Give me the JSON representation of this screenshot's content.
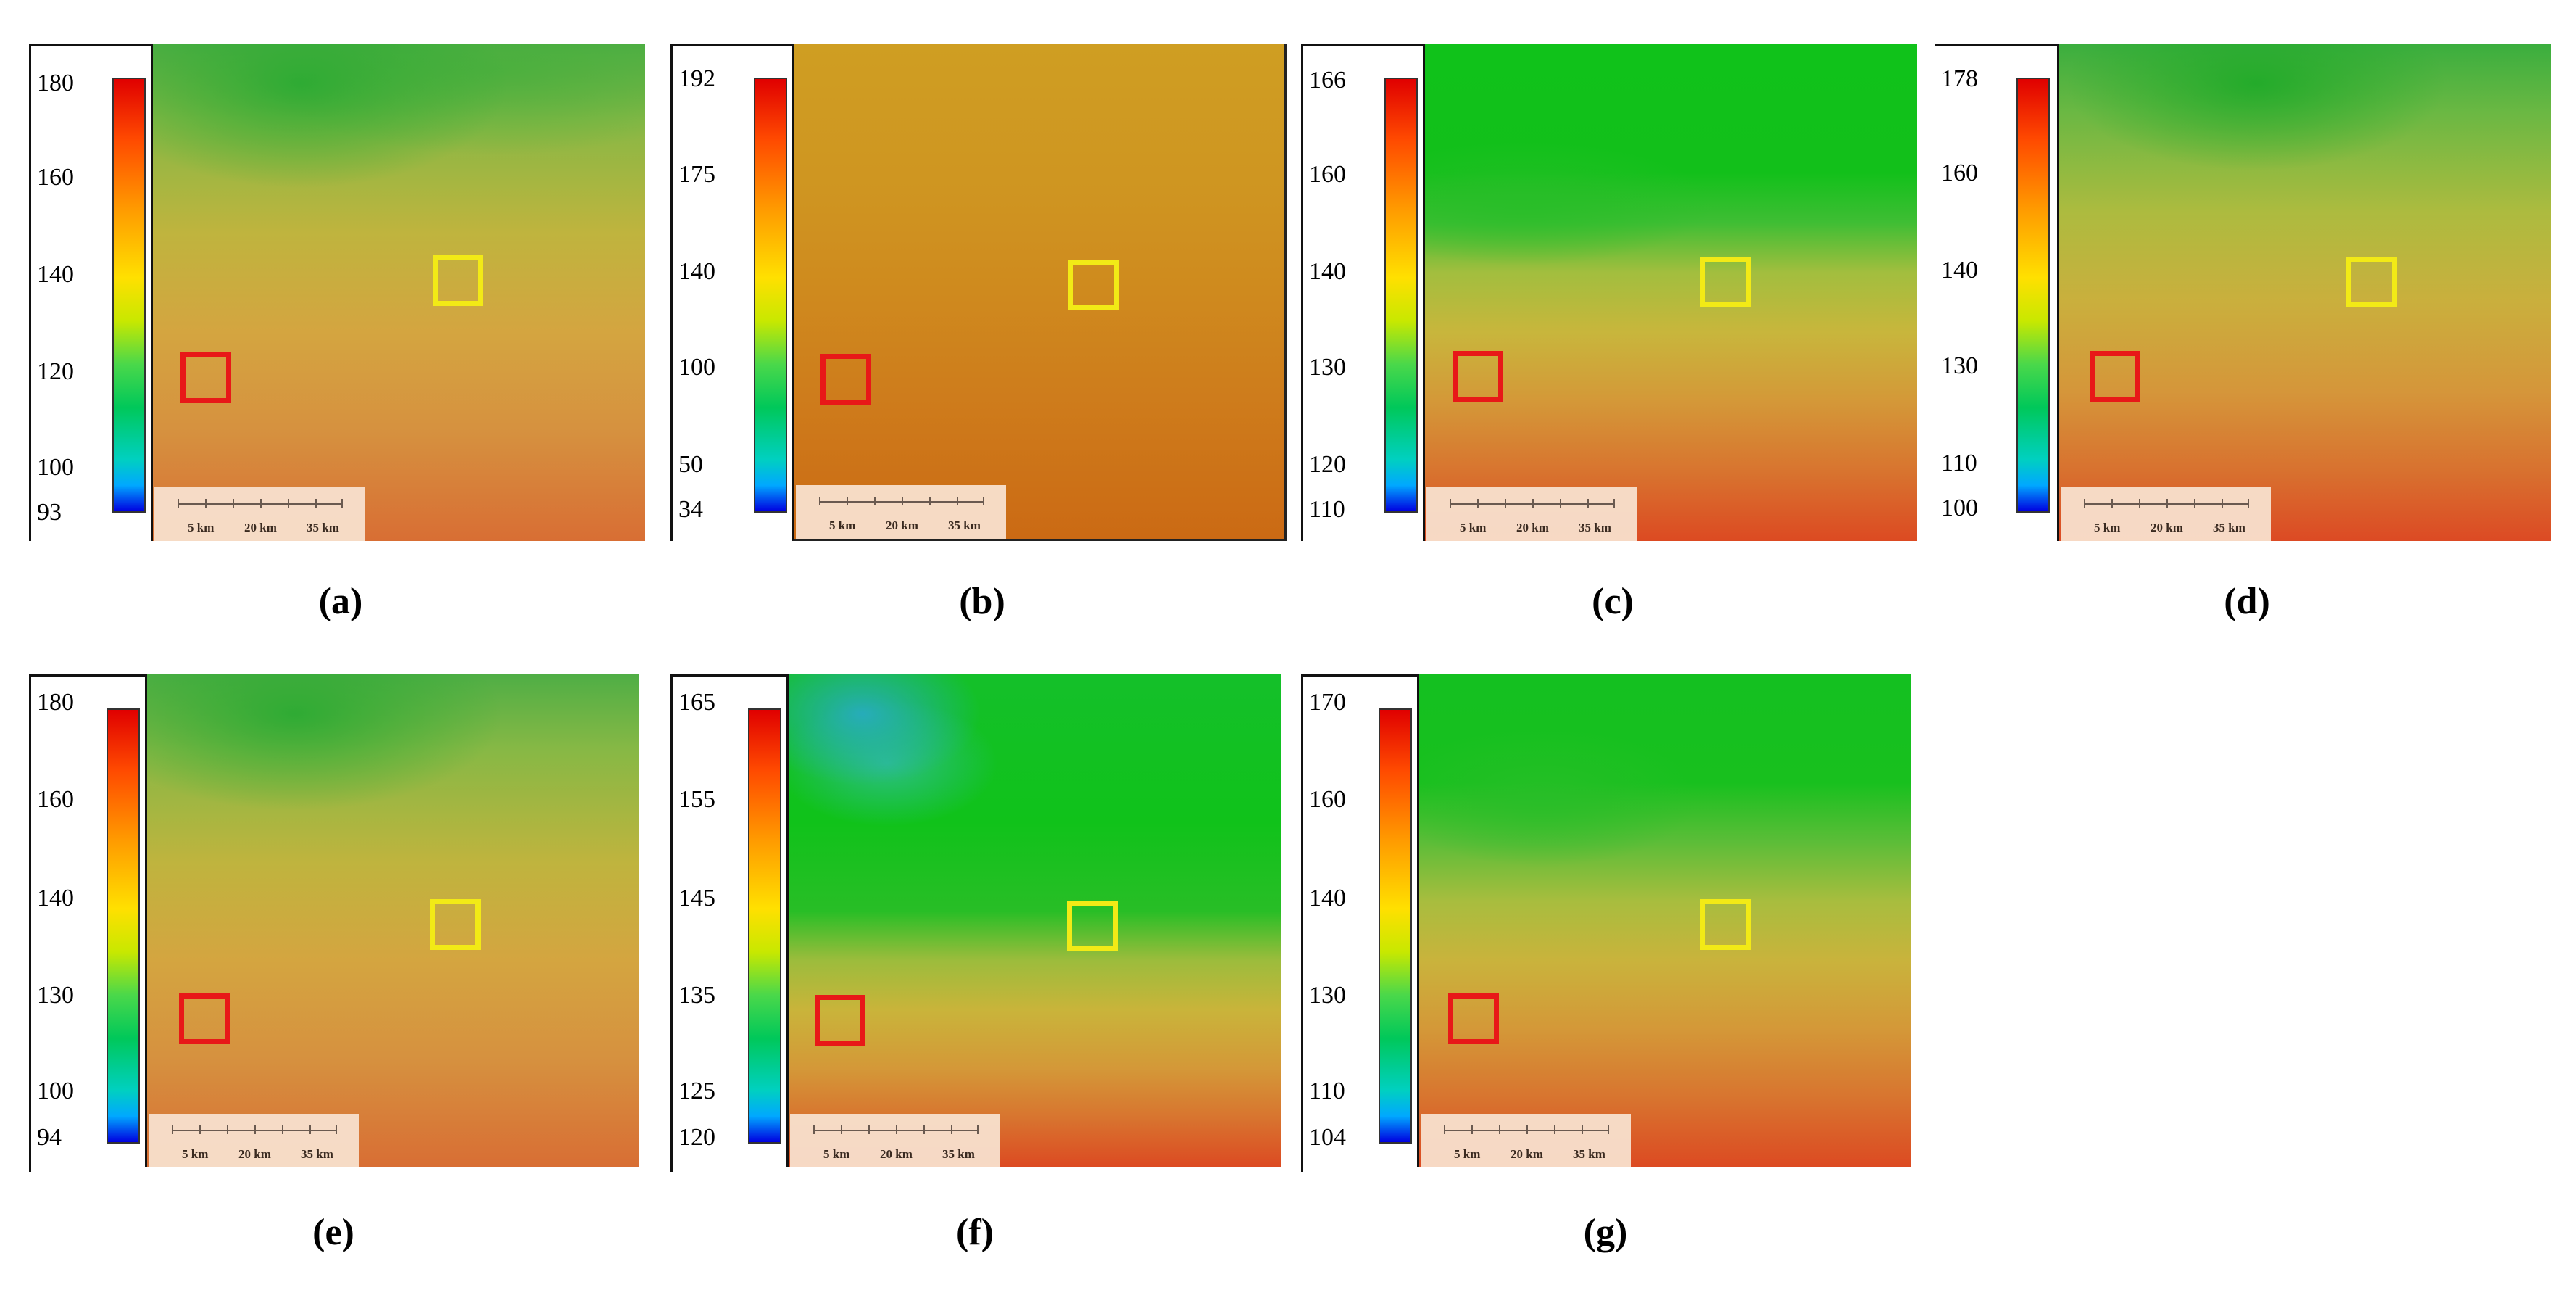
{
  "panels": [
    {
      "id": "a",
      "caption": "(a)",
      "ticks": [
        "180",
        "160",
        "140",
        "120",
        "100",
        "93"
      ],
      "scale": [
        "5 km",
        "20 km",
        "35 km"
      ],
      "colors": {
        "red_box": "#e81818",
        "yellow_box": "#f2ea16"
      }
    },
    {
      "id": "b",
      "caption": "(b)",
      "ticks": [
        "192",
        "175",
        "140",
        "100",
        "50",
        "34"
      ],
      "scale": [
        "5 km",
        "20 km",
        "35 km"
      ]
    },
    {
      "id": "c",
      "caption": "(c)",
      "ticks": [
        "166",
        "160",
        "140",
        "130",
        "120",
        "110"
      ],
      "scale": [
        "5 km",
        "20 km",
        "35 km"
      ]
    },
    {
      "id": "d",
      "caption": "(d)",
      "ticks": [
        "178",
        "160",
        "140",
        "130",
        "110",
        "100"
      ],
      "scale": [
        "5 km",
        "20 km",
        "35 km"
      ]
    },
    {
      "id": "e",
      "caption": "(e)",
      "ticks": [
        "180",
        "160",
        "140",
        "130",
        "100",
        "94"
      ],
      "scale": [
        "5 km",
        "20 km",
        "35 km"
      ]
    },
    {
      "id": "f",
      "caption": "(f)",
      "ticks": [
        "165",
        "155",
        "145",
        "135",
        "125",
        "120"
      ],
      "scale": [
        "5 km",
        "20 km",
        "35 km"
      ]
    },
    {
      "id": "g",
      "caption": "(g)",
      "ticks": [
        "170",
        "160",
        "140",
        "130",
        "110",
        "104"
      ],
      "scale": [
        "5 km",
        "20 km",
        "35 km"
      ]
    }
  ]
}
